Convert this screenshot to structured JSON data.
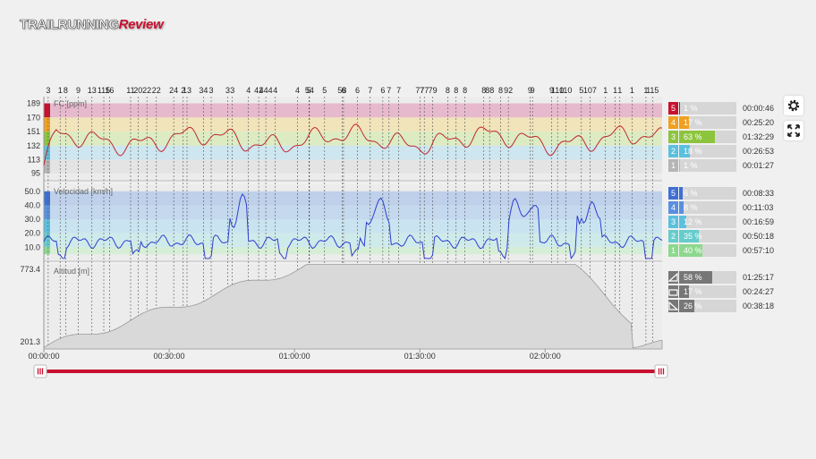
{
  "brand": {
    "part1": "TRAILRUNNING",
    "part2": "Review"
  },
  "colors": {
    "accent": "#c8102e",
    "hr_line": "#c0292e",
    "speed_line": "#2d3fd0",
    "alt_fill": "#d9d9d9"
  },
  "toolbar": {
    "settings_icon": "gear-icon",
    "fullscreen_icon": "expand-icon"
  },
  "chart_data": [
    {
      "type": "line",
      "title": "FC [ppm]",
      "yticks": [
        189,
        170,
        151,
        132,
        113,
        95
      ],
      "ylim": [
        85,
        198
      ],
      "zones": [
        {
          "zone": "5",
          "pct": "1 %",
          "time": "00:00:46",
          "color": "#c8102e",
          "band_color": "#e7b9cc",
          "from": 170,
          "to": 189,
          "fraction": 0.01
        },
        {
          "zone": "4",
          "pct": "17 %",
          "time": "00:25:20",
          "color": "#f0a020",
          "band_color": "#f1e3ba",
          "from": 151,
          "to": 170,
          "fraction": 0.17
        },
        {
          "zone": "3",
          "pct": "63 %",
          "time": "01:32:29",
          "color": "#8dc43e",
          "band_color": "#dcebc2",
          "from": 132,
          "to": 151,
          "fraction": 0.63
        },
        {
          "zone": "2",
          "pct": "18 %",
          "time": "00:26:53",
          "color": "#5bc0de",
          "band_color": "#cde6ef",
          "from": 113,
          "to": 132,
          "fraction": 0.18
        },
        {
          "zone": "1",
          "pct": "1 %",
          "time": "00:01:27",
          "color": "#b5b5b5",
          "band_color": "#e4e4e4",
          "from": 95,
          "to": 113,
          "fraction": 0.01
        }
      ]
    },
    {
      "type": "line",
      "title": "Velocidad [km/h]",
      "yticks": [
        "50.0",
        "40.0",
        "30.0",
        "20.0",
        "10.0"
      ],
      "ylim": [
        0,
        55
      ],
      "zones": [
        {
          "zone": "5",
          "pct": "6 %",
          "time": "00:08:33",
          "color": "#3f6fd1",
          "band_color": "#bed0ea",
          "from": 40,
          "to": 50,
          "fraction": 0.06
        },
        {
          "zone": "4",
          "pct": "8 %",
          "time": "00:11:03",
          "color": "#5a8fe0",
          "band_color": "#c4d8ee",
          "from": 30,
          "to": 40,
          "fraction": 0.08
        },
        {
          "zone": "3",
          "pct": "12 %",
          "time": "00:16:59",
          "color": "#5bc0de",
          "band_color": "#c9e4f0",
          "from": 20,
          "to": 30,
          "fraction": 0.12
        },
        {
          "zone": "2",
          "pct": "35 %",
          "time": "00:50:18",
          "color": "#66cccc",
          "band_color": "#cfeaea",
          "from": 10,
          "to": 20,
          "fraction": 0.35
        },
        {
          "zone": "1",
          "pct": "40 %",
          "time": "00:57:10",
          "color": "#8dd88d",
          "band_color": "#d6eed6",
          "from": 5,
          "to": 10,
          "fraction": 0.4
        }
      ]
    },
    {
      "type": "area",
      "title": "Altitud [m]",
      "yticks": [
        "773.4",
        "201.3"
      ],
      "ylim": [
        201.3,
        773.4
      ],
      "slopes": [
        {
          "icon": "uphill-icon",
          "pct": "58 %",
          "time": "01:25:17",
          "fraction": 0.58
        },
        {
          "icon": "flat-icon",
          "pct": "17 %",
          "time": "00:24:27",
          "fraction": 0.17
        },
        {
          "icon": "downhill-icon",
          "pct": "26 %",
          "time": "00:38:18",
          "fraction": 0.26
        }
      ]
    }
  ],
  "xaxis": {
    "labels": [
      "00:00:00",
      "00:30:00",
      "01:00:00",
      "01:30:00",
      "02:00:00"
    ]
  },
  "markers": {
    "labels": [
      "3",
      "1",
      "8",
      "9",
      "13",
      "115",
      "16",
      "11",
      "20",
      "22",
      "22",
      "24",
      "2",
      "13",
      "34",
      "3",
      "3",
      "3",
      "4",
      "42",
      "444",
      "4",
      "4",
      "5",
      "54",
      "5",
      "58",
      "6",
      "6",
      "7",
      "6",
      "7",
      "7",
      "77",
      "77",
      "79",
      "8",
      "8",
      "8",
      "8",
      "88",
      "8",
      "92",
      "9",
      "9",
      "9",
      "110",
      "110",
      "5",
      "107",
      "1",
      "1",
      "1",
      "1",
      "1",
      "115"
    ]
  }
}
